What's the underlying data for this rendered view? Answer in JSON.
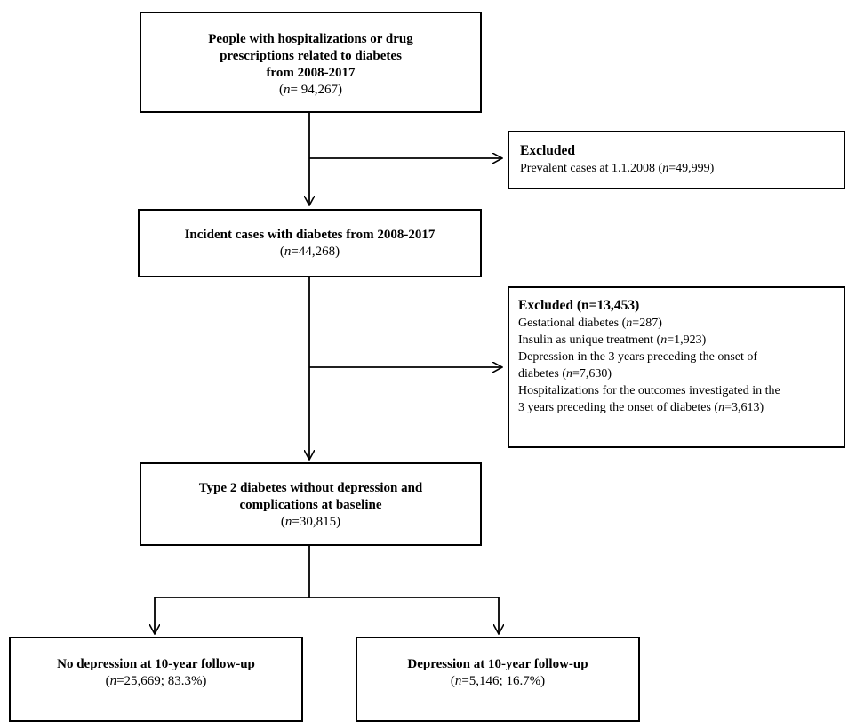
{
  "boxes": {
    "start": {
      "lines": [
        "People with hospitalizations or drug",
        "prescriptions related to diabetes",
        "from 2008-2017"
      ],
      "n_label": "n",
      "n_value": "= 94,267)"
    },
    "excluded1": {
      "title": "Excluded",
      "line_prefix": "Prevalent cases at 1.1.2008 (",
      "n_label": "n",
      "line_suffix": "=49,999)"
    },
    "incident": {
      "title": "Incident cases with diabetes from 2008-2017",
      "n_label": "n",
      "n_value": "=44,268)"
    },
    "excluded2": {
      "title": "Excluded (n=13,453)",
      "items": [
        {
          "prefix": "Gestational diabetes (",
          "n_label": "n",
          "suffix": "=287)"
        },
        {
          "prefix": "Insulin as unique treatment (",
          "n_label": "n",
          "suffix": "=1,923)"
        },
        {
          "prefix": "Depression in the 3 years preceding the onset of",
          "n_label": "",
          "suffix": ""
        },
        {
          "prefix": "diabetes (",
          "n_label": "n",
          "suffix": "=7,630)"
        },
        {
          "prefix": "Hospitalizations for the outcomes investigated in the",
          "n_label": "",
          "suffix": ""
        },
        {
          "prefix": "3 years preceding the onset of diabetes (",
          "n_label": "n",
          "suffix": "=3,613)"
        }
      ]
    },
    "type2": {
      "lines": [
        "Type 2 diabetes without depression and",
        "complications at baseline"
      ],
      "n_label": "n",
      "n_value": "=30,815)"
    },
    "no_depression": {
      "title": "No depression at 10-year follow-up",
      "n_label": "n",
      "n_value": "=25,669; 83.3%)"
    },
    "depression": {
      "title": "Depression at 10-year follow-up",
      "n_label": "n",
      "n_value": "=5,146; 16.7%)"
    }
  },
  "colors": {
    "line": "#000000",
    "background": "#ffffff"
  }
}
